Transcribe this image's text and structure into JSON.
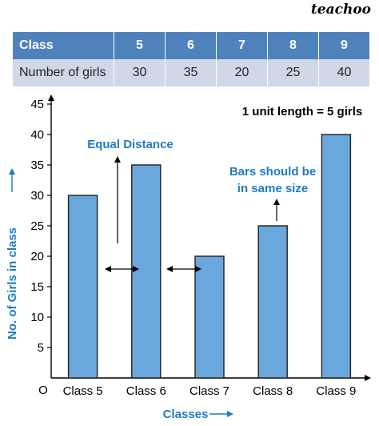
{
  "brand": "teachoo",
  "table": {
    "header": [
      "Class",
      "5",
      "6",
      "7",
      "8",
      "9"
    ],
    "row_label": "Number of girls",
    "row_values": [
      "30",
      "35",
      "20",
      "25",
      "40"
    ]
  },
  "annotations": {
    "scale_note": "1 unit length = 5 girls",
    "equal_distance": "Equal Distance",
    "bars_same_size_line1": "Bars should be",
    "bars_same_size_line2": "in same size",
    "origin": "O"
  },
  "colors": {
    "bar_fill": "#6aa7dc",
    "bar_stroke": "#1f1f1f",
    "label_blue": "#1f7bbf",
    "table_header": "#4f81bd",
    "table_body": "#d0d8e8"
  },
  "chart_data": {
    "type": "bar",
    "categories": [
      "Class 5",
      "Class 6",
      "Class 7",
      "Class 8",
      "Class 9"
    ],
    "values": [
      30,
      35,
      20,
      25,
      40
    ],
    "title": "",
    "xlabel": "Classes",
    "ylabel": "No. of Girls in class",
    "ylim": [
      0,
      45
    ],
    "yticks": [
      "5",
      "10",
      "15",
      "20",
      "25",
      "30",
      "35",
      "40",
      "45"
    ],
    "grid": false,
    "legend": "none"
  }
}
